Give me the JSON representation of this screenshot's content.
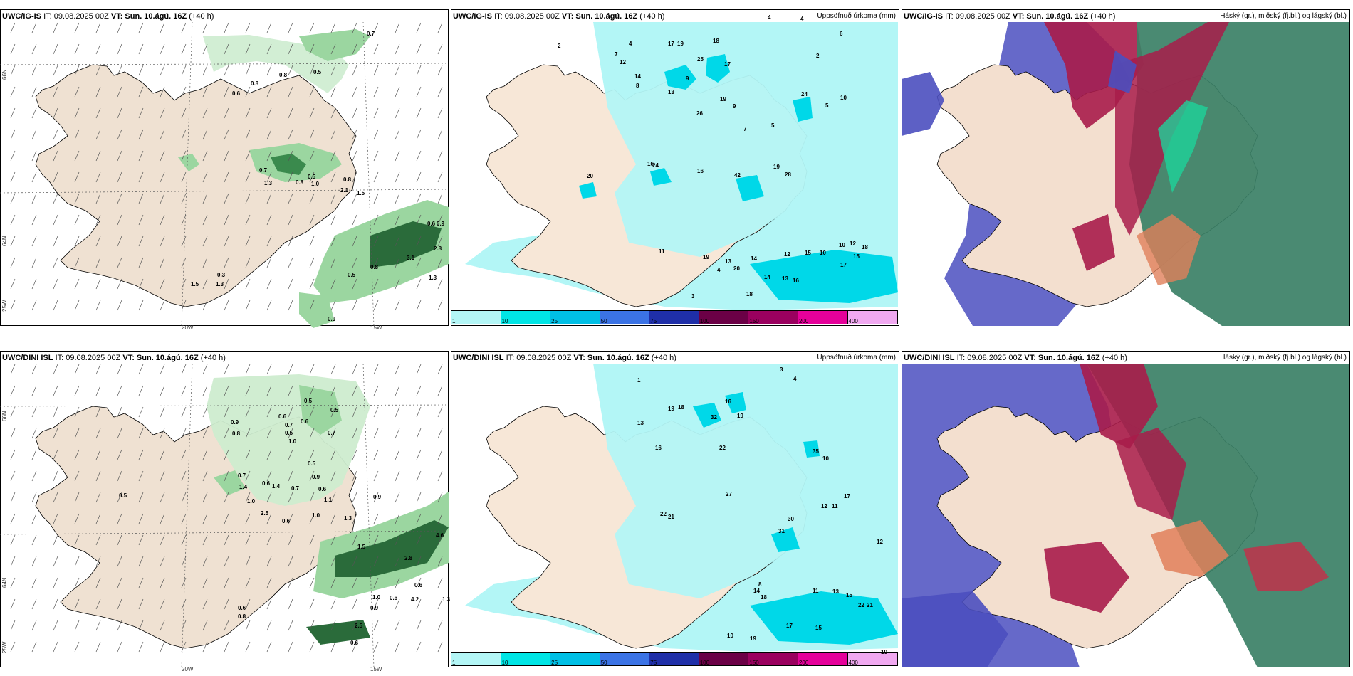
{
  "panels": [
    {
      "model": "UWC/IG-IS",
      "it_label": "IT: 09.08.2025 00Z",
      "vt_label": "VT: Sun. 10.ágú. 16Z",
      "lead": "(+40 h)",
      "right": ""
    },
    {
      "model": "UWC/IG-IS",
      "it_label": "IT: 09.08.2025 00Z",
      "vt_label": "VT: Sun. 10.ágú. 16Z",
      "lead": "(+40 h)",
      "right": "Uppsöfnuð úrkoma (mm)"
    },
    {
      "model": "UWC/IG-IS",
      "it_label": "IT: 09.08.2025 00Z",
      "vt_label": "VT: Sun. 10.ágú. 16Z",
      "lead": "(+40 h)",
      "right": "Háský (gr.), miðský (fj.bl.) og lágský (bl.)"
    },
    {
      "model": "UWC/DINI ISL",
      "it_label": "IT: 09.08.2025 00Z",
      "vt_label": "VT: Sun. 10.ágú. 16Z",
      "lead": "(+40 h)",
      "right": ""
    },
    {
      "model": "UWC/DINI ISL",
      "it_label": "IT: 09.08.2025 00Z",
      "vt_label": "VT: Sun. 10.ágú. 16Z",
      "lead": "(+40 h)",
      "right": "Uppsöfnuð úrkoma (mm)"
    },
    {
      "model": "UWC/DINI ISL",
      "it_label": "IT: 09.08.2025 00Z",
      "vt_label": "VT: Sun. 10.ágú. 16Z",
      "lead": "(+40 h)",
      "right": "Háský (gr.), miðský (fj.bl.) og lágský (bl.)"
    }
  ],
  "axes": {
    "lon1": "20W",
    "lon2": "15W",
    "lat1": "66N",
    "lat2": "64N",
    "lat3": "25W"
  },
  "colorbar": {
    "ticks": [
      "1",
      "10",
      "25",
      "50",
      "75",
      "100",
      "150",
      "200",
      "400"
    ],
    "colors": [
      "#b3f6f6",
      "#00e5e5",
      "#00bfe5",
      "#3b73e5",
      "#1f2fa8",
      "#6b0046",
      "#9a005f",
      "#e5009a",
      "#f0a8f0"
    ]
  },
  "precip_labels_top": [
    [
      "2",
      150,
      60
    ],
    [
      "4",
      250,
      57
    ],
    [
      "7",
      230,
      72
    ],
    [
      "12",
      237,
      83
    ],
    [
      "17",
      305,
      57
    ],
    [
      "19",
      318,
      57
    ],
    [
      "25",
      346,
      79
    ],
    [
      "18",
      368,
      53
    ],
    [
      "17",
      384,
      86
    ],
    [
      "4",
      445,
      20
    ],
    [
      "4",
      491,
      22
    ],
    [
      "6",
      546,
      43
    ],
    [
      "2",
      513,
      74
    ],
    [
      "14",
      258,
      103
    ],
    [
      "8",
      260,
      116
    ],
    [
      "9",
      330,
      106
    ],
    [
      "13",
      305,
      125
    ],
    [
      "19",
      378,
      135
    ],
    [
      "24",
      492,
      128
    ],
    [
      "10",
      547,
      133
    ],
    [
      "5",
      526,
      144
    ],
    [
      "9",
      396,
      145
    ],
    [
      "26",
      345,
      155
    ],
    [
      "5",
      450,
      172
    ],
    [
      "7",
      411,
      177
    ],
    [
      "16",
      276,
      226
    ],
    [
      "24",
      283,
      228
    ],
    [
      "20",
      191,
      243
    ],
    [
      "16",
      346,
      236
    ],
    [
      "42",
      398,
      242
    ],
    [
      "28",
      469,
      241
    ],
    [
      "19",
      453,
      230
    ],
    [
      "11",
      292,
      349
    ],
    [
      "19",
      354,
      357
    ],
    [
      "13",
      385,
      363
    ],
    [
      "14",
      421,
      359
    ],
    [
      "20",
      397,
      373
    ],
    [
      "12",
      468,
      353
    ],
    [
      "15",
      497,
      351
    ],
    [
      "10",
      518,
      351
    ],
    [
      "10",
      545,
      340
    ],
    [
      "12",
      560,
      338
    ],
    [
      "18",
      577,
      343
    ],
    [
      "15",
      565,
      356
    ],
    [
      "17",
      547,
      368
    ],
    [
      "16",
      480,
      390
    ],
    [
      "13",
      465,
      387
    ],
    [
      "14",
      440,
      385
    ],
    [
      "18",
      415,
      409
    ],
    [
      "4",
      374,
      375
    ],
    [
      "3",
      338,
      412
    ]
  ],
  "precip_labels_bot": [
    [
      "1",
      262,
      530
    ],
    [
      "4",
      481,
      528
    ],
    [
      "3",
      462,
      515
    ],
    [
      "19",
      305,
      570
    ],
    [
      "18",
      319,
      568
    ],
    [
      "16",
      385,
      560
    ],
    [
      "19",
      402,
      580
    ],
    [
      "32",
      365,
      582
    ],
    [
      "13",
      262,
      590
    ],
    [
      "35",
      508,
      630
    ],
    [
      "22",
      377,
      625
    ],
    [
      "27",
      386,
      690
    ],
    [
      "16",
      287,
      625
    ],
    [
      "22",
      294,
      718
    ],
    [
      "21",
      305,
      722
    ],
    [
      "31",
      460,
      742
    ],
    [
      "30",
      473,
      725
    ],
    [
      "10",
      522,
      640
    ],
    [
      "17",
      552,
      693
    ],
    [
      "11",
      535,
      707
    ],
    [
      "12",
      520,
      707
    ],
    [
      "18",
      435,
      835
    ],
    [
      "11",
      508,
      826
    ],
    [
      "13",
      536,
      827
    ],
    [
      "15",
      555,
      832
    ],
    [
      "22",
      572,
      846
    ],
    [
      "21",
      584,
      846
    ],
    [
      "17",
      471,
      875
    ],
    [
      "15",
      512,
      878
    ],
    [
      "19",
      420,
      893
    ],
    [
      "10",
      388,
      889
    ],
    [
      "14",
      425,
      826
    ],
    [
      "8",
      432,
      817
    ],
    [
      "12",
      598,
      757
    ],
    [
      "10",
      604,
      912
    ]
  ],
  "wind_numbers_top": [
    [
      "0.7",
      515,
      43
    ],
    [
      "0.5",
      440,
      97
    ],
    [
      "0.8",
      392,
      101
    ],
    [
      "0.8",
      352,
      113
    ],
    [
      "0.6",
      326,
      127
    ],
    [
      "0.7",
      364,
      235
    ],
    [
      "1.3",
      371,
      253
    ],
    [
      "0.5",
      432,
      244
    ],
    [
      "0.8",
      415,
      252
    ],
    [
      "1.0",
      437,
      254
    ],
    [
      "0.8",
      482,
      248
    ],
    [
      "2.1",
      478,
      263
    ],
    [
      "1.5",
      501,
      267
    ],
    [
      "0.5",
      488,
      382
    ],
    [
      "0.8",
      520,
      371
    ],
    [
      "3.1",
      571,
      358
    ],
    [
      "1.3",
      602,
      386
    ],
    [
      "2.8",
      609,
      345
    ],
    [
      "0.6",
      600,
      310
    ],
    [
      "0.9",
      613,
      310
    ],
    [
      "1.5",
      268,
      395
    ],
    [
      "0.3",
      305,
      382
    ],
    [
      "1.3",
      303,
      395
    ],
    [
      "0.9",
      460,
      444
    ]
  ],
  "wind_numbers_bot": [
    [
      "0.5",
      427,
      559
    ],
    [
      "0.5",
      464,
      572
    ],
    [
      "0.9",
      324,
      589
    ],
    [
      "0.8",
      326,
      605
    ],
    [
      "0.6",
      391,
      581
    ],
    [
      "0.7",
      400,
      593
    ],
    [
      "0.5",
      400,
      604
    ],
    [
      "1.0",
      405,
      616
    ],
    [
      "0.6",
      422,
      588
    ],
    [
      "0.7",
      460,
      604
    ],
    [
      "0.5",
      432,
      647
    ],
    [
      "0.9",
      438,
      666
    ],
    [
      "0.6",
      447,
      683
    ],
    [
      "1.1",
      455,
      698
    ],
    [
      "0.7",
      334,
      664
    ],
    [
      "1.4",
      336,
      680
    ],
    [
      "0.6",
      368,
      675
    ],
    [
      "1.4",
      382,
      679
    ],
    [
      "0.7",
      409,
      682
    ],
    [
      "0.5",
      167,
      692
    ],
    [
      "1.0",
      347,
      700
    ],
    [
      "2.5",
      366,
      717
    ],
    [
      "0.6",
      396,
      728
    ],
    [
      "1.0",
      438,
      720
    ],
    [
      "1.3",
      483,
      724
    ],
    [
      "1.5",
      502,
      764
    ],
    [
      "0.9",
      524,
      694
    ],
    [
      "2.8",
      568,
      780
    ],
    [
      "0.6",
      582,
      818
    ],
    [
      "4.2",
      577,
      838
    ],
    [
      "1.0",
      523,
      835
    ],
    [
      "0.6",
      547,
      836
    ],
    [
      "0.9",
      520,
      850
    ],
    [
      "0.6",
      334,
      850
    ],
    [
      "0.8",
      334,
      862
    ],
    [
      "2.5",
      498,
      875
    ],
    [
      "0.6",
      492,
      899
    ],
    [
      "4.6",
      612,
      748
    ],
    [
      "1.3",
      621,
      838
    ]
  ]
}
